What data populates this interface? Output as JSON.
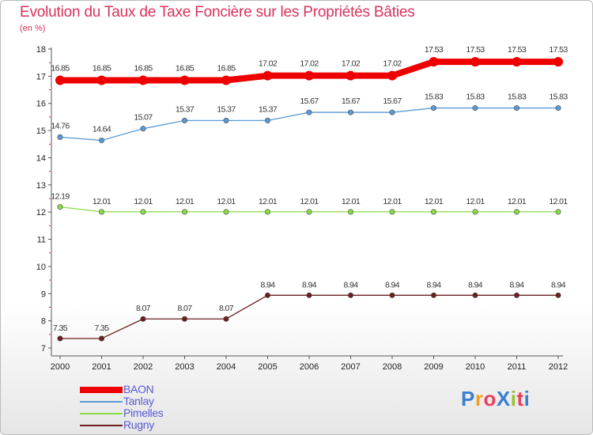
{
  "title": "Evolution du Taux de Taxe Foncière sur les Propriétés Bâties",
  "unit_label": "(en %)",
  "logo_text": "ProXiti",
  "chart_data": {
    "type": "line",
    "title": "Evolution du Taux de Taxe Foncière sur les Propriétés Bâties",
    "ylabel": "(en %)",
    "xlabel": "",
    "ylim": [
      7,
      18
    ],
    "yticks": [
      7,
      8,
      9,
      10,
      11,
      12,
      13,
      14,
      15,
      16,
      17,
      18
    ],
    "grid": false,
    "categories": [
      "2000",
      "2001",
      "2002",
      "2003",
      "2004",
      "2005",
      "2006",
      "2007",
      "2008",
      "2009",
      "2010",
      "2011",
      "2012"
    ],
    "series": [
      {
        "name": "BAON",
        "color": "#ee0000",
        "values": [
          16.85,
          16.85,
          16.85,
          16.85,
          16.85,
          17.02,
          17.02,
          17.02,
          17.02,
          17.53,
          17.53,
          17.53,
          17.53
        ],
        "labels": [
          "16.85",
          "16.85",
          "16.85",
          "16.85",
          "16.85",
          "17.02",
          "17.02",
          "17.02",
          "17.02",
          "17.53",
          "17.53",
          "17.53",
          "17.53"
        ]
      },
      {
        "name": "Tanlay",
        "color": "#5b9bd5",
        "values": [
          14.76,
          14.64,
          15.07,
          15.37,
          15.37,
          15.37,
          15.67,
          15.67,
          15.67,
          15.83,
          15.83,
          15.83,
          15.83
        ],
        "labels": [
          "14.76",
          "14.64",
          "15.07",
          "15.37",
          "15.37",
          "15.37",
          "15.67",
          "15.67",
          "15.67",
          "15.83",
          "15.83",
          "15.83",
          "15.83"
        ]
      },
      {
        "name": "Pimelles",
        "color": "#88dd44",
        "values": [
          12.19,
          12.01,
          12.01,
          12.01,
          12.01,
          12.01,
          12.01,
          12.01,
          12.01,
          12.01,
          12.01,
          12.01,
          12.01
        ],
        "labels": [
          "12.19",
          "12.01",
          "12.01",
          "12.01",
          "12.01",
          "12.01",
          "12.01",
          "12.01",
          "12.01",
          "12.01",
          "12.01",
          "12.01",
          "12.01"
        ]
      },
      {
        "name": "Rugny",
        "color": "#6b1f1f",
        "values": [
          7.35,
          7.35,
          8.07,
          8.07,
          8.07,
          8.94,
          8.94,
          8.94,
          8.94,
          8.94,
          8.94,
          8.94,
          8.94
        ],
        "labels": [
          "7.35",
          "7.35",
          "8.07",
          "8.07",
          "8.07",
          "8.94",
          "8.94",
          "8.94",
          "8.94",
          "8.94",
          "8.94",
          "8.94",
          "8.94"
        ]
      }
    ]
  }
}
